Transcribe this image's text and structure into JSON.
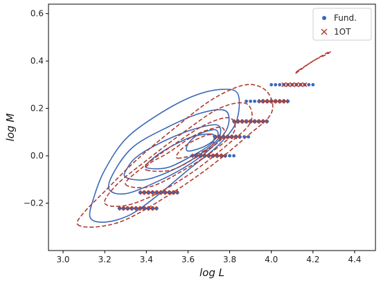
{
  "chart_data": {
    "type": "scatter",
    "xlabel": "log L",
    "ylabel": "log M",
    "xlim": [
      2.93,
      4.5
    ],
    "ylim": [
      -0.4,
      0.64
    ],
    "xticks": [
      3.0,
      3.2,
      3.4,
      3.6,
      3.8,
      4.0,
      4.2,
      4.4
    ],
    "xtick_labels": [
      "3.0",
      "3.2",
      "3.4",
      "3.6",
      "3.8",
      "4.0",
      "4.2",
      "4.4"
    ],
    "yticks": [
      -0.2,
      0.0,
      0.2,
      0.4,
      0.6
    ],
    "ytick_labels": [
      "−0.2",
      "0.0",
      "0.2",
      "0.4",
      "0.6"
    ],
    "grid": false,
    "legend": {
      "placement": "top-right",
      "entries": [
        {
          "label": "Fund.",
          "marker": "dot",
          "color": "#3a68b8"
        },
        {
          "label": "1OT",
          "marker": "x",
          "color": "#b03a2e"
        }
      ]
    },
    "series": [
      {
        "name": "Fund.",
        "marker": "dot",
        "color": "#3a68b8",
        "points": [
          [
            3.27,
            -0.222
          ],
          [
            3.29,
            -0.222
          ],
          [
            3.31,
            -0.222
          ],
          [
            3.33,
            -0.222
          ],
          [
            3.35,
            -0.222
          ],
          [
            3.37,
            -0.222
          ],
          [
            3.39,
            -0.222
          ],
          [
            3.41,
            -0.222
          ],
          [
            3.43,
            -0.222
          ],
          [
            3.45,
            -0.222
          ],
          [
            3.37,
            -0.155
          ],
          [
            3.39,
            -0.155
          ],
          [
            3.41,
            -0.155
          ],
          [
            3.43,
            -0.155
          ],
          [
            3.45,
            -0.155
          ],
          [
            3.47,
            -0.155
          ],
          [
            3.49,
            -0.155
          ],
          [
            3.51,
            -0.155
          ],
          [
            3.53,
            -0.155
          ],
          [
            3.55,
            -0.155
          ],
          [
            3.62,
            0.0
          ],
          [
            3.64,
            0.0
          ],
          [
            3.66,
            0.0
          ],
          [
            3.68,
            0.0
          ],
          [
            3.7,
            0.0
          ],
          [
            3.72,
            0.0
          ],
          [
            3.74,
            0.0
          ],
          [
            3.76,
            0.0
          ],
          [
            3.78,
            0.0
          ],
          [
            3.8,
            0.0
          ],
          [
            3.82,
            0.0
          ],
          [
            3.73,
            0.08
          ],
          [
            3.75,
            0.08
          ],
          [
            3.77,
            0.08
          ],
          [
            3.79,
            0.08
          ],
          [
            3.81,
            0.08
          ],
          [
            3.83,
            0.08
          ],
          [
            3.85,
            0.08
          ],
          [
            3.87,
            0.08
          ],
          [
            3.89,
            0.08
          ],
          [
            3.82,
            0.145
          ],
          [
            3.84,
            0.145
          ],
          [
            3.86,
            0.145
          ],
          [
            3.88,
            0.145
          ],
          [
            3.9,
            0.145
          ],
          [
            3.92,
            0.145
          ],
          [
            3.94,
            0.145
          ],
          [
            3.96,
            0.145
          ],
          [
            3.98,
            0.145
          ],
          [
            3.88,
            0.23
          ],
          [
            3.9,
            0.23
          ],
          [
            3.92,
            0.23
          ],
          [
            3.94,
            0.23
          ],
          [
            3.96,
            0.23
          ],
          [
            3.98,
            0.23
          ],
          [
            4.0,
            0.23
          ],
          [
            4.02,
            0.23
          ],
          [
            4.04,
            0.23
          ],
          [
            4.06,
            0.23
          ],
          [
            4.08,
            0.23
          ],
          [
            4.0,
            0.3
          ],
          [
            4.02,
            0.3
          ],
          [
            4.04,
            0.3
          ],
          [
            4.06,
            0.3
          ],
          [
            4.08,
            0.3
          ],
          [
            4.1,
            0.3
          ],
          [
            4.12,
            0.3
          ],
          [
            4.14,
            0.3
          ],
          [
            4.16,
            0.3
          ],
          [
            4.18,
            0.3
          ],
          [
            4.2,
            0.3
          ]
        ]
      },
      {
        "name": "1OT",
        "marker": "x",
        "color": "#b03a2e",
        "points": [
          [
            3.28,
            -0.222
          ],
          [
            3.3,
            -0.222
          ],
          [
            3.32,
            -0.222
          ],
          [
            3.34,
            -0.222
          ],
          [
            3.36,
            -0.222
          ],
          [
            3.38,
            -0.222
          ],
          [
            3.4,
            -0.222
          ],
          [
            3.42,
            -0.222
          ],
          [
            3.44,
            -0.222
          ],
          [
            3.38,
            -0.155
          ],
          [
            3.4,
            -0.155
          ],
          [
            3.42,
            -0.155
          ],
          [
            3.44,
            -0.155
          ],
          [
            3.46,
            -0.155
          ],
          [
            3.48,
            -0.155
          ],
          [
            3.5,
            -0.155
          ],
          [
            3.52,
            -0.155
          ],
          [
            3.54,
            -0.155
          ],
          [
            3.63,
            0.0
          ],
          [
            3.65,
            0.0
          ],
          [
            3.67,
            0.0
          ],
          [
            3.69,
            0.0
          ],
          [
            3.71,
            0.0
          ],
          [
            3.73,
            0.0
          ],
          [
            3.75,
            0.0
          ],
          [
            3.77,
            0.0
          ],
          [
            3.74,
            0.08
          ],
          [
            3.76,
            0.08
          ],
          [
            3.78,
            0.08
          ],
          [
            3.8,
            0.08
          ],
          [
            3.82,
            0.08
          ],
          [
            3.84,
            0.08
          ],
          [
            3.83,
            0.145
          ],
          [
            3.85,
            0.145
          ],
          [
            3.87,
            0.145
          ],
          [
            3.89,
            0.145
          ],
          [
            3.91,
            0.145
          ],
          [
            3.93,
            0.145
          ],
          [
            3.95,
            0.145
          ],
          [
            3.97,
            0.145
          ],
          [
            3.95,
            0.23
          ],
          [
            3.97,
            0.23
          ],
          [
            3.99,
            0.23
          ],
          [
            4.01,
            0.23
          ],
          [
            4.03,
            0.23
          ],
          [
            4.05,
            0.23
          ],
          [
            4.07,
            0.23
          ],
          [
            4.06,
            0.3
          ],
          [
            4.08,
            0.3
          ],
          [
            4.1,
            0.3
          ],
          [
            4.12,
            0.3
          ],
          [
            4.14,
            0.3
          ],
          [
            4.16,
            0.3
          ]
        ]
      }
    ],
    "contours": [
      {
        "group": "Fund.",
        "color": "#3a68b8",
        "dash": false,
        "levels": [
          [
            [
              3.13,
              -0.26
            ],
            [
              3.2,
              -0.28
            ],
            [
              3.32,
              -0.25
            ],
            [
              3.45,
              -0.17
            ],
            [
              3.6,
              -0.06
            ],
            [
              3.74,
              0.04
            ],
            [
              3.83,
              0.14
            ],
            [
              3.84,
              0.26
            ],
            [
              3.76,
              0.28
            ],
            [
              3.62,
              0.25
            ],
            [
              3.45,
              0.17
            ],
            [
              3.3,
              0.07
            ],
            [
              3.2,
              -0.06
            ],
            [
              3.15,
              -0.17
            ]
          ],
          [
            [
              3.22,
              -0.14
            ],
            [
              3.3,
              -0.16
            ],
            [
              3.45,
              -0.11
            ],
            [
              3.6,
              -0.04
            ],
            [
              3.72,
              0.04
            ],
            [
              3.79,
              0.12
            ],
            [
              3.78,
              0.19
            ],
            [
              3.66,
              0.18
            ],
            [
              3.5,
              0.12
            ],
            [
              3.34,
              0.04
            ],
            [
              3.25,
              -0.06
            ]
          ],
          [
            [
              3.3,
              -0.09
            ],
            [
              3.4,
              -0.1
            ],
            [
              3.55,
              -0.05
            ],
            [
              3.68,
              0.02
            ],
            [
              3.75,
              0.08
            ],
            [
              3.74,
              0.13
            ],
            [
              3.62,
              0.11
            ],
            [
              3.48,
              0.06
            ],
            [
              3.36,
              0.0
            ],
            [
              3.31,
              -0.05
            ]
          ],
          [
            [
              3.4,
              -0.05
            ],
            [
              3.5,
              -0.05
            ],
            [
              3.62,
              0.0
            ],
            [
              3.71,
              0.05
            ],
            [
              3.72,
              0.09
            ],
            [
              3.62,
              0.08
            ],
            [
              3.5,
              0.03
            ],
            [
              3.42,
              -0.02
            ]
          ],
          [
            [
              3.6,
              0.02
            ],
            [
              3.68,
              0.04
            ],
            [
              3.74,
              0.08
            ],
            [
              3.73,
              0.11
            ],
            [
              3.65,
              0.09
            ],
            [
              3.6,
              0.05
            ]
          ]
        ]
      },
      {
        "group": "1OT",
        "color": "#b03a2e",
        "dash": true,
        "levels": [
          [
            [
              3.07,
              -0.29
            ],
            [
              3.16,
              -0.3
            ],
            [
              3.3,
              -0.27
            ],
            [
              3.5,
              -0.17
            ],
            [
              3.7,
              -0.05
            ],
            [
              3.88,
              0.08
            ],
            [
              4.0,
              0.18
            ],
            [
              3.98,
              0.27
            ],
            [
              3.88,
              0.3
            ],
            [
              3.72,
              0.24
            ],
            [
              3.54,
              0.12
            ],
            [
              3.35,
              -0.02
            ],
            [
              3.2,
              -0.15
            ],
            [
              3.1,
              -0.24
            ]
          ],
          [
            [
              3.2,
              -0.2
            ],
            [
              3.3,
              -0.21
            ],
            [
              3.45,
              -0.16
            ],
            [
              3.62,
              -0.07
            ],
            [
              3.78,
              0.04
            ],
            [
              3.9,
              0.14
            ],
            [
              3.88,
              0.22
            ],
            [
              3.75,
              0.2
            ],
            [
              3.58,
              0.1
            ],
            [
              3.4,
              -0.02
            ],
            [
              3.26,
              -0.12
            ]
          ],
          [
            [
              3.3,
              -0.12
            ],
            [
              3.42,
              -0.13
            ],
            [
              3.58,
              -0.06
            ],
            [
              3.72,
              0.02
            ],
            [
              3.82,
              0.1
            ],
            [
              3.8,
              0.16
            ],
            [
              3.68,
              0.13
            ],
            [
              3.52,
              0.04
            ],
            [
              3.38,
              -0.05
            ]
          ],
          [
            [
              3.4,
              -0.06
            ],
            [
              3.52,
              -0.06
            ],
            [
              3.65,
              0.0
            ],
            [
              3.76,
              0.07
            ],
            [
              3.76,
              0.12
            ],
            [
              3.64,
              0.09
            ],
            [
              3.5,
              0.01
            ],
            [
              3.42,
              -0.03
            ]
          ],
          [
            [
              3.55,
              -0.01
            ],
            [
              3.65,
              0.01
            ],
            [
              3.72,
              0.05
            ],
            [
              3.71,
              0.09
            ],
            [
              3.62,
              0.06
            ],
            [
              3.56,
              0.02
            ]
          ],
          [
            [
              4.13,
              0.36
            ],
            [
              4.22,
              0.41
            ],
            [
              4.28,
              0.44
            ],
            [
              4.27,
              0.43
            ],
            [
              4.2,
              0.4
            ],
            [
              4.12,
              0.35
            ]
          ]
        ]
      }
    ]
  }
}
